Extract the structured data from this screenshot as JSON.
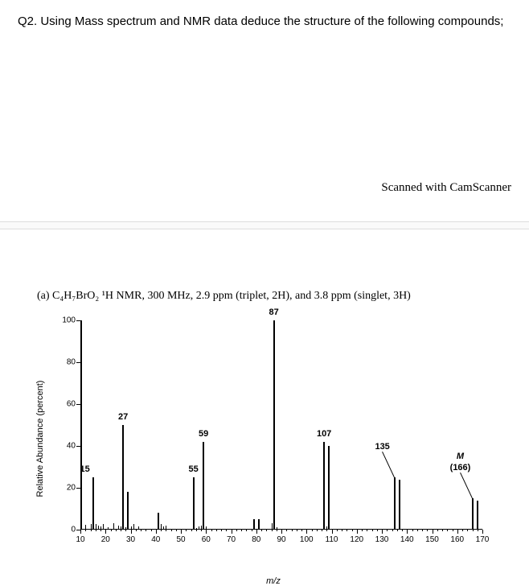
{
  "question": "Q2. Using Mass spectrum and NMR data deduce the structure of the following compounds;",
  "watermark": "Scanned with CamScanner",
  "subquestion": "(a)  C₄H₇BrO₂ ¹H NMR, 300 MHz, 2.9 ppm (triplet, 2H), and 3.8 ppm (singlet, 3H)",
  "ylabel": "Relative Abundance (percent)",
  "xlabel": "m/z",
  "chart": {
    "xlim": [
      10,
      170
    ],
    "ylim": [
      0,
      100
    ],
    "xticks": [
      10,
      20,
      30,
      40,
      50,
      60,
      70,
      80,
      90,
      100,
      110,
      120,
      130,
      140,
      150,
      160,
      170
    ],
    "yticks": [
      0,
      20,
      40,
      60,
      80,
      100
    ],
    "peaks": [
      {
        "mz": 15,
        "h": 25,
        "label": "15",
        "labelSide": "left"
      },
      {
        "mz": 27,
        "h": 50,
        "label": "27"
      },
      {
        "mz": 29,
        "h": 18
      },
      {
        "mz": 41,
        "h": 8
      },
      {
        "mz": 55,
        "h": 25,
        "label": "55"
      },
      {
        "mz": 59,
        "h": 42,
        "label": "59"
      },
      {
        "mz": 79,
        "h": 5
      },
      {
        "mz": 81,
        "h": 5
      },
      {
        "mz": 87,
        "h": 100,
        "label": "87"
      },
      {
        "mz": 107,
        "h": 42,
        "label": "107"
      },
      {
        "mz": 109,
        "h": 40
      },
      {
        "mz": 135,
        "h": 25,
        "label": "135",
        "leader": true
      },
      {
        "mz": 137,
        "h": 24
      },
      {
        "mz": 166,
        "h": 15,
        "label": "(166)",
        "mLabel": "M",
        "leader": true
      },
      {
        "mz": 168,
        "h": 14
      }
    ],
    "noise": [
      12,
      14,
      16,
      17,
      18,
      19,
      21,
      23,
      25,
      26,
      28,
      30,
      31,
      33,
      42,
      43,
      44,
      56,
      57,
      58,
      60,
      86,
      88,
      108
    ]
  }
}
